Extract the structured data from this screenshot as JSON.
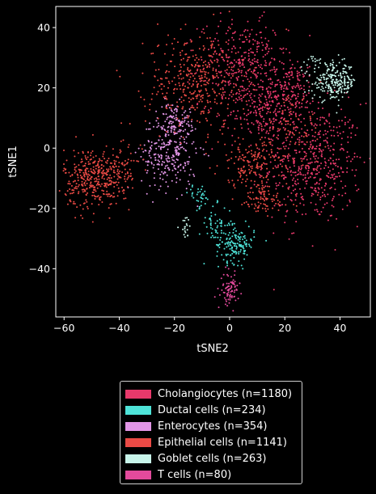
{
  "chart_data": {
    "type": "scatter",
    "xlabel": "tSNE2",
    "ylabel": "tSNE1",
    "xlim": [
      -63,
      51
    ],
    "ylim": [
      -56,
      47
    ],
    "xticks": [
      -60,
      -40,
      -20,
      0,
      20,
      40
    ],
    "yticks": [
      -40,
      -20,
      0,
      20,
      40
    ],
    "xtick_labels": [
      "−60",
      "−40",
      "−20",
      "0",
      "20",
      "40"
    ],
    "ytick_labels": [
      "−40",
      "−20",
      "0",
      "20",
      "40"
    ],
    "grid": false,
    "legend_position": "bottom",
    "series": [
      {
        "name": "Cholangiocytes (n=1180)",
        "color": "#e8396b",
        "clusters": [
          [
            30,
            -5,
            9,
            10,
            520
          ],
          [
            5,
            28,
            8,
            7,
            330
          ],
          [
            12,
            12,
            6,
            5,
            180
          ],
          [
            22,
            20,
            5,
            4,
            150
          ]
        ]
      },
      {
        "name": "Ductal cells (n=234)",
        "color": "#4ee3d8",
        "clusters": [
          [
            2,
            -32,
            3.5,
            3,
            150
          ],
          [
            -5,
            -25,
            3,
            3,
            50
          ],
          [
            -11,
            -16,
            2,
            2,
            34
          ]
        ]
      },
      {
        "name": "Enterocytes (n=354)",
        "color": "#e296e6",
        "clusters": [
          [
            -22,
            -2,
            5,
            6,
            250
          ],
          [
            -20,
            9,
            3,
            3,
            104
          ]
        ]
      },
      {
        "name": "Epithelial cells (n=1141)",
        "color": "#ea4a45",
        "clusters": [
          [
            -50,
            -10,
            5,
            5,
            330
          ],
          [
            -12,
            22,
            9,
            8,
            380
          ],
          [
            8,
            -5,
            6,
            4,
            160
          ],
          [
            12,
            -17,
            5,
            3,
            90
          ],
          [
            -40,
            -8,
            4,
            4,
            100
          ],
          [
            22,
            5,
            6,
            6,
            81
          ]
        ]
      },
      {
        "name": "Goblet cells (n=263)",
        "color": "#c8f5ea",
        "clusters": [
          [
            38,
            22,
            4,
            3,
            230
          ],
          [
            -16,
            -26,
            1.2,
            2,
            20
          ],
          [
            30,
            29,
            2,
            1,
            13
          ]
        ]
      },
      {
        "name": "T cells (n=80)",
        "color": "#e34a9c",
        "clusters": [
          [
            0,
            -47,
            1.6,
            2.5,
            80
          ]
        ]
      }
    ]
  }
}
